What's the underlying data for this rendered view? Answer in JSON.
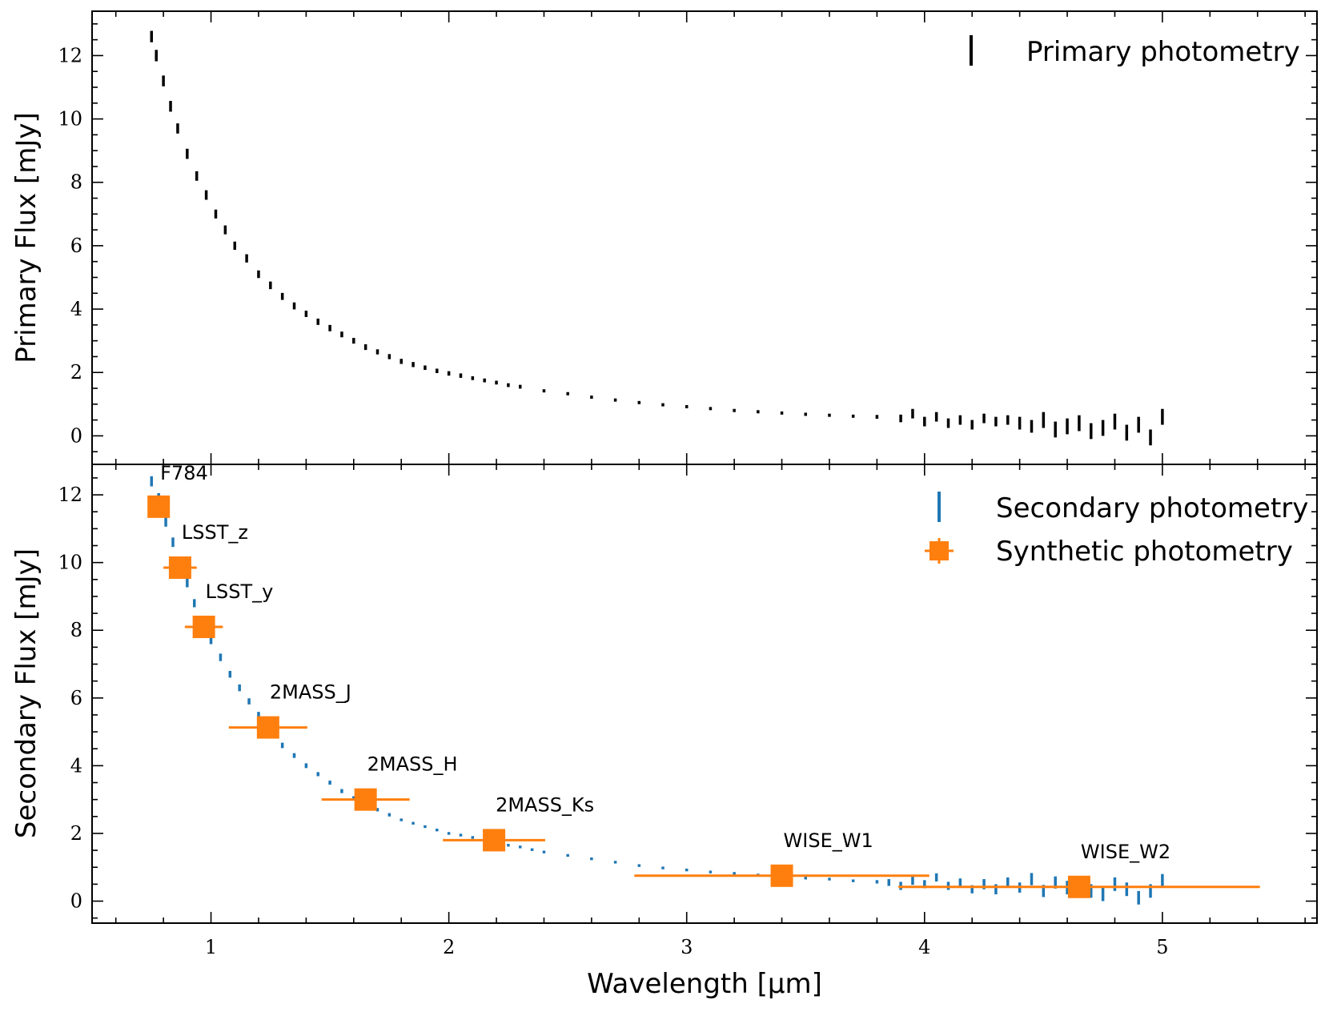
{
  "chart_data": [
    {
      "type": "scatter",
      "ylabel": "Primary Flux [mJy]",
      "xlim": [
        0.5,
        5.65
      ],
      "ylim": [
        -0.9,
        13.4
      ],
      "yticks": [
        0,
        2,
        4,
        6,
        8,
        10,
        12
      ],
      "xticks": [
        1,
        2,
        3,
        4,
        5
      ],
      "legend": {
        "position": "top-right",
        "entries": [
          "Primary photometry"
        ]
      },
      "series": [
        {
          "name": "Primary photometry",
          "color": "#000000",
          "marker": "vertical-errorbar",
          "x": [
            0.75,
            0.77,
            0.8,
            0.83,
            0.86,
            0.9,
            0.94,
            0.98,
            1.02,
            1.06,
            1.1,
            1.15,
            1.2,
            1.25,
            1.3,
            1.35,
            1.4,
            1.45,
            1.5,
            1.55,
            1.6,
            1.65,
            1.7,
            1.75,
            1.8,
            1.85,
            1.9,
            1.95,
            2.0,
            2.05,
            2.1,
            2.15,
            2.2,
            2.25,
            2.3,
            2.4,
            2.5,
            2.6,
            2.7,
            2.8,
            2.9,
            3.0,
            3.1,
            3.2,
            3.3,
            3.4,
            3.5,
            3.6,
            3.7,
            3.8,
            3.9,
            3.95,
            4.0,
            4.05,
            4.1,
            4.15,
            4.2,
            4.25,
            4.3,
            4.35,
            4.4,
            4.45,
            4.5,
            4.55,
            4.6,
            4.65,
            4.7,
            4.75,
            4.8,
            4.85,
            4.9,
            4.95,
            5.0
          ],
          "y": [
            12.6,
            12.0,
            11.2,
            10.4,
            9.7,
            8.9,
            8.2,
            7.6,
            7.0,
            6.5,
            6.0,
            5.6,
            5.1,
            4.75,
            4.4,
            4.1,
            3.85,
            3.6,
            3.4,
            3.2,
            3.0,
            2.8,
            2.65,
            2.5,
            2.35,
            2.25,
            2.15,
            2.05,
            1.97,
            1.9,
            1.82,
            1.75,
            1.68,
            1.6,
            1.55,
            1.42,
            1.33,
            1.22,
            1.13,
            1.05,
            0.98,
            0.92,
            0.86,
            0.8,
            0.76,
            0.72,
            0.68,
            0.65,
            0.62,
            0.6,
            0.55,
            0.7,
            0.45,
            0.6,
            0.4,
            0.5,
            0.35,
            0.55,
            0.45,
            0.5,
            0.4,
            0.3,
            0.5,
            0.2,
            0.3,
            0.4,
            0.15,
            0.25,
            0.45,
            0.1,
            0.35,
            -0.05,
            0.6
          ],
          "yerr": [
            0.18,
            0.18,
            0.17,
            0.17,
            0.16,
            0.16,
            0.15,
            0.15,
            0.14,
            0.14,
            0.13,
            0.13,
            0.12,
            0.12,
            0.11,
            0.11,
            0.1,
            0.1,
            0.1,
            0.09,
            0.09,
            0.09,
            0.08,
            0.08,
            0.08,
            0.08,
            0.07,
            0.07,
            0.07,
            0.07,
            0.06,
            0.06,
            0.06,
            0.06,
            0.06,
            0.05,
            0.05,
            0.05,
            0.05,
            0.05,
            0.05,
            0.05,
            0.05,
            0.05,
            0.05,
            0.05,
            0.05,
            0.05,
            0.05,
            0.06,
            0.12,
            0.15,
            0.15,
            0.15,
            0.15,
            0.15,
            0.15,
            0.15,
            0.15,
            0.15,
            0.2,
            0.2,
            0.25,
            0.25,
            0.25,
            0.25,
            0.25,
            0.25,
            0.25,
            0.25,
            0.25,
            0.25,
            0.25
          ]
        }
      ]
    },
    {
      "type": "scatter",
      "xlabel": "Wavelength [μm]",
      "ylabel": "Secondary Flux [mJy]",
      "xlim": [
        0.5,
        5.65
      ],
      "ylim": [
        -0.65,
        12.9
      ],
      "yticks": [
        0,
        2,
        4,
        6,
        8,
        10,
        12
      ],
      "xticks": [
        1,
        2,
        3,
        4,
        5
      ],
      "legend": {
        "position": "top-right",
        "entries": [
          "Secondary photometry",
          "Synthetic photometry"
        ]
      },
      "series": [
        {
          "name": "Secondary photometry",
          "color": "#1f77b4",
          "marker": "vertical-errorbar",
          "x": [
            0.75,
            0.78,
            0.81,
            0.84,
            0.87,
            0.9,
            0.93,
            0.96,
            1.0,
            1.04,
            1.08,
            1.12,
            1.16,
            1.2,
            1.25,
            1.3,
            1.35,
            1.4,
            1.45,
            1.5,
            1.55,
            1.6,
            1.65,
            1.7,
            1.75,
            1.8,
            1.85,
            1.9,
            1.95,
            2.0,
            2.05,
            2.1,
            2.15,
            2.2,
            2.25,
            2.3,
            2.35,
            2.4,
            2.5,
            2.6,
            2.7,
            2.8,
            2.9,
            3.0,
            3.1,
            3.2,
            3.3,
            3.4,
            3.5,
            3.6,
            3.7,
            3.8,
            3.85,
            3.9,
            3.95,
            4.0,
            4.05,
            4.1,
            4.15,
            4.2,
            4.25,
            4.3,
            4.35,
            4.4,
            4.45,
            4.5,
            4.55,
            4.6,
            4.65,
            4.7,
            4.75,
            4.8,
            4.85,
            4.9,
            4.95,
            5.0
          ],
          "y": [
            12.4,
            11.9,
            11.2,
            10.6,
            10.0,
            9.4,
            8.8,
            8.3,
            7.7,
            7.2,
            6.7,
            6.3,
            5.9,
            5.5,
            5.0,
            4.6,
            4.3,
            4.0,
            3.75,
            3.5,
            3.25,
            3.05,
            2.85,
            2.7,
            2.55,
            2.4,
            2.3,
            2.2,
            2.1,
            2.0,
            1.95,
            1.88,
            1.8,
            1.72,
            1.65,
            1.6,
            1.52,
            1.45,
            1.35,
            1.25,
            1.15,
            1.05,
            0.98,
            0.92,
            0.86,
            0.82,
            0.77,
            0.72,
            0.68,
            0.65,
            0.6,
            0.57,
            0.55,
            0.45,
            0.6,
            0.5,
            0.7,
            0.45,
            0.55,
            0.35,
            0.5,
            0.35,
            0.55,
            0.4,
            0.65,
            0.3,
            0.55,
            0.4,
            0.45,
            0.3,
            0.2,
            0.5,
            0.35,
            0.1,
            0.3,
            0.6
          ],
          "yerr": [
            0.15,
            0.15,
            0.14,
            0.14,
            0.13,
            0.13,
            0.12,
            0.12,
            0.11,
            0.11,
            0.1,
            0.1,
            0.09,
            0.09,
            0.08,
            0.08,
            0.07,
            0.07,
            0.06,
            0.06,
            0.06,
            0.05,
            0.05,
            0.05,
            0.05,
            0.04,
            0.04,
            0.04,
            0.04,
            0.04,
            0.04,
            0.04,
            0.04,
            0.04,
            0.04,
            0.04,
            0.04,
            0.04,
            0.04,
            0.04,
            0.04,
            0.04,
            0.04,
            0.04,
            0.04,
            0.04,
            0.04,
            0.04,
            0.04,
            0.04,
            0.04,
            0.05,
            0.1,
            0.12,
            0.12,
            0.12,
            0.12,
            0.12,
            0.12,
            0.12,
            0.15,
            0.15,
            0.15,
            0.15,
            0.18,
            0.18,
            0.18,
            0.2,
            0.2,
            0.2,
            0.2,
            0.2,
            0.2,
            0.2,
            0.2,
            0.2
          ]
        },
        {
          "name": "Synthetic photometry",
          "color": "#ff7f0e",
          "marker": "square-with-xerr",
          "points": [
            {
              "label": "F784",
              "x": 0.78,
              "y": 11.65,
              "xerr": 0.02
            },
            {
              "label": "LSST_z",
              "x": 0.87,
              "y": 9.85,
              "xerr": 0.07
            },
            {
              "label": "LSST_y",
              "x": 0.97,
              "y": 8.1,
              "xerr": 0.08
            },
            {
              "label": "2MASS_J",
              "x": 1.24,
              "y": 5.13,
              "xerr": 0.165
            },
            {
              "label": "2MASS_H",
              "x": 1.65,
              "y": 3.0,
              "xerr": 0.185
            },
            {
              "label": "2MASS_Ks",
              "x": 2.19,
              "y": 1.8,
              "xerr": 0.215
            },
            {
              "label": "WISE_W1",
              "x": 3.4,
              "y": 0.75,
              "xerr": 0.62
            },
            {
              "label": "WISE_W2",
              "x": 4.65,
              "y": 0.42,
              "xerr": 0.76
            }
          ]
        }
      ]
    }
  ]
}
